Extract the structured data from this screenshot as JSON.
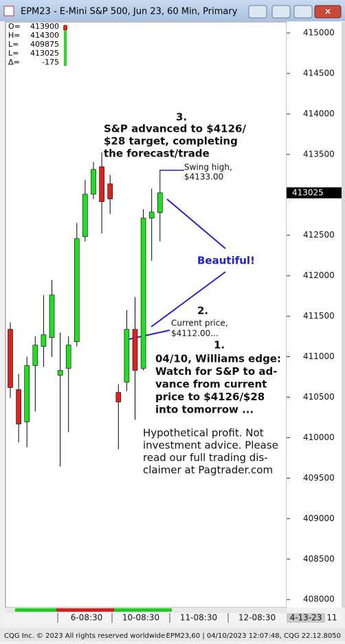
{
  "window_title": "EPM23 - E-Mini S&P 500, Jun 23, 60 Min, Primary",
  "header": [
    {
      "label": "O=",
      "value": "413900"
    },
    {
      "label": "H=",
      "value": "414300"
    },
    {
      "label": "L=",
      "value": "409875"
    },
    {
      "label": "L=",
      "value": "413025"
    },
    {
      "label": "Δ=",
      "value": "-175"
    }
  ],
  "chart_data": {
    "type": "candlestick",
    "categories": [
      null,
      null,
      null,
      null,
      null,
      null,
      null,
      null,
      null,
      null,
      null,
      null,
      null,
      null,
      null,
      null,
      null,
      null,
      null
    ],
    "open": [
      411339,
      410593,
      410195,
      410890,
      411127,
      411237,
      410771,
      410856,
      411186,
      412483,
      413008,
      413347,
      413136,
      410559,
      410686,
      411339,
      410856,
      412712,
      412780
    ],
    "high": [
      411424,
      410788,
      411000,
      411254,
      411763,
      411949,
      411297,
      411254,
      412653,
      413186,
      413407,
      413525,
      413246,
      410661,
      411576,
      411737,
      412822,
      413076,
      413300
    ],
    "low": [
      410492,
      409941,
      409881,
      410322,
      410873,
      411000,
      409644,
      410068,
      411127,
      412424,
      412949,
      412525,
      412763,
      409856,
      410576,
      410220,
      410831,
      412186,
      412424
    ],
    "close": [
      410619,
      410169,
      410890,
      411144,
      411271,
      411763,
      410831,
      411144,
      412458,
      413008,
      413314,
      412915,
      412949,
      410441,
      411339,
      410831,
      412712,
      412788,
      413025
    ],
    "up_color": "#22dd22",
    "down_color": "#dd2222",
    "ylim": [
      407900,
      415136
    ],
    "yticks": [
      408000,
      408500,
      409000,
      409500,
      410000,
      410500,
      411000,
      411500,
      412000,
      412500,
      413000,
      413500,
      414000,
      414500,
      415000
    ],
    "last_price": 413025,
    "x_labels": [
      "6-08:30",
      "10-08:30",
      "11-08:30",
      "12-08:30"
    ],
    "end_date": "4-13-23",
    "end_hour": "11",
    "annotations": {
      "step3": "3.",
      "step3_text": [
        "S&P advanced to $4126/",
        "$28 target, completing",
        "the forecast/trade"
      ],
      "swing": [
        "Swing high,",
        "$4133.00"
      ],
      "beautiful": "Beautiful!",
      "step2": "2.",
      "current": [
        "Current price,",
        "$4112.00..."
      ],
      "step1": "1.",
      "step1_text": [
        "04/10, Williams edge:",
        "Watch for S&P to ad-",
        "vance from current",
        "price to $4126/$28",
        "into tomorrow ..."
      ],
      "disclaimer": [
        "Hypothetical profit. Not",
        "investment advice. Please",
        "read our full trading dis-",
        "claimer at Pagtrader.com"
      ]
    }
  },
  "footer": {
    "left": "CQG Inc. © 2023 All rights reserved worldwide",
    "right": "EPM23,60 | 04/10/2023 12:07:48, CQG 22.12.8050"
  }
}
